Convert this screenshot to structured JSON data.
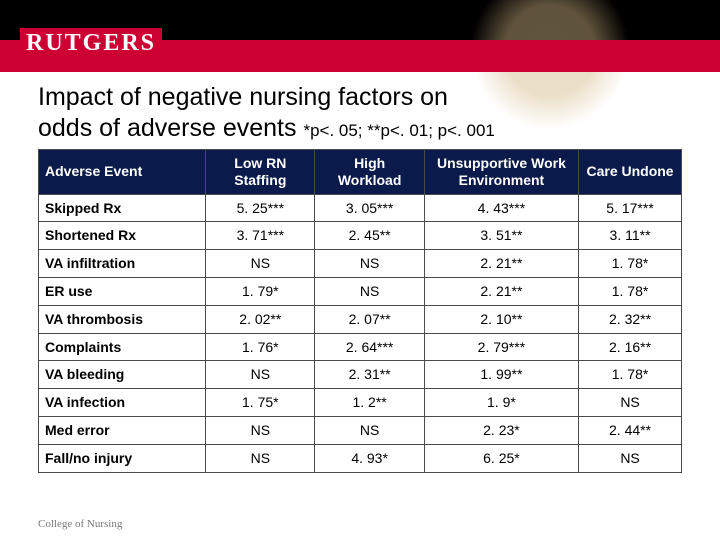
{
  "brand": {
    "logo_text": "RUTGERS"
  },
  "title_line1": "Impact of negative nursing factors on",
  "title_line2_prefix": "odds of adverse events ",
  "sig_note": "*p<. 05; **p<. 01; p<. 001",
  "footer": "College of Nursing",
  "table": {
    "columns": [
      "Adverse Event",
      "Low RN Staffing",
      "High Workload",
      "Unsupportive Work Environment",
      "Care Undone"
    ],
    "rows": [
      [
        "Skipped Rx",
        "5. 25***",
        "3. 05***",
        "4. 43***",
        "5. 17***"
      ],
      [
        "Shortened Rx",
        "3. 71***",
        "2. 45**",
        "3. 51**",
        "3. 11**"
      ],
      [
        "VA infiltration",
        "NS",
        "NS",
        "2. 21**",
        "1. 78*"
      ],
      [
        "ER use",
        "1. 79*",
        "NS",
        "2. 21**",
        "1. 78*"
      ],
      [
        "VA thrombosis",
        "2. 02**",
        "2. 07**",
        "2. 10**",
        "2. 32**"
      ],
      [
        "Complaints",
        "1. 76*",
        "2. 64***",
        "2. 79***",
        "2. 16**"
      ],
      [
        "VA bleeding",
        "NS",
        "2. 31**",
        "1. 99**",
        "1. 78*"
      ],
      [
        "VA infection",
        "1. 75*",
        "1. 2**",
        "1. 9*",
        "NS"
      ],
      [
        "Med error",
        "NS",
        "NS",
        "2. 23*",
        "2. 44**"
      ],
      [
        "Fall/no injury",
        "NS",
        "4. 93*",
        "6. 25*",
        "NS"
      ]
    ],
    "header_bg": "#0a1a4a",
    "header_fg": "#ffffff",
    "border_color": "#4a4a4a",
    "col_widths": [
      "26%",
      "17%",
      "17%",
      "24%",
      "16%"
    ]
  },
  "colors": {
    "brand_red": "#cc0033",
    "black": "#000000",
    "seal_tan": "#d4b784"
  }
}
